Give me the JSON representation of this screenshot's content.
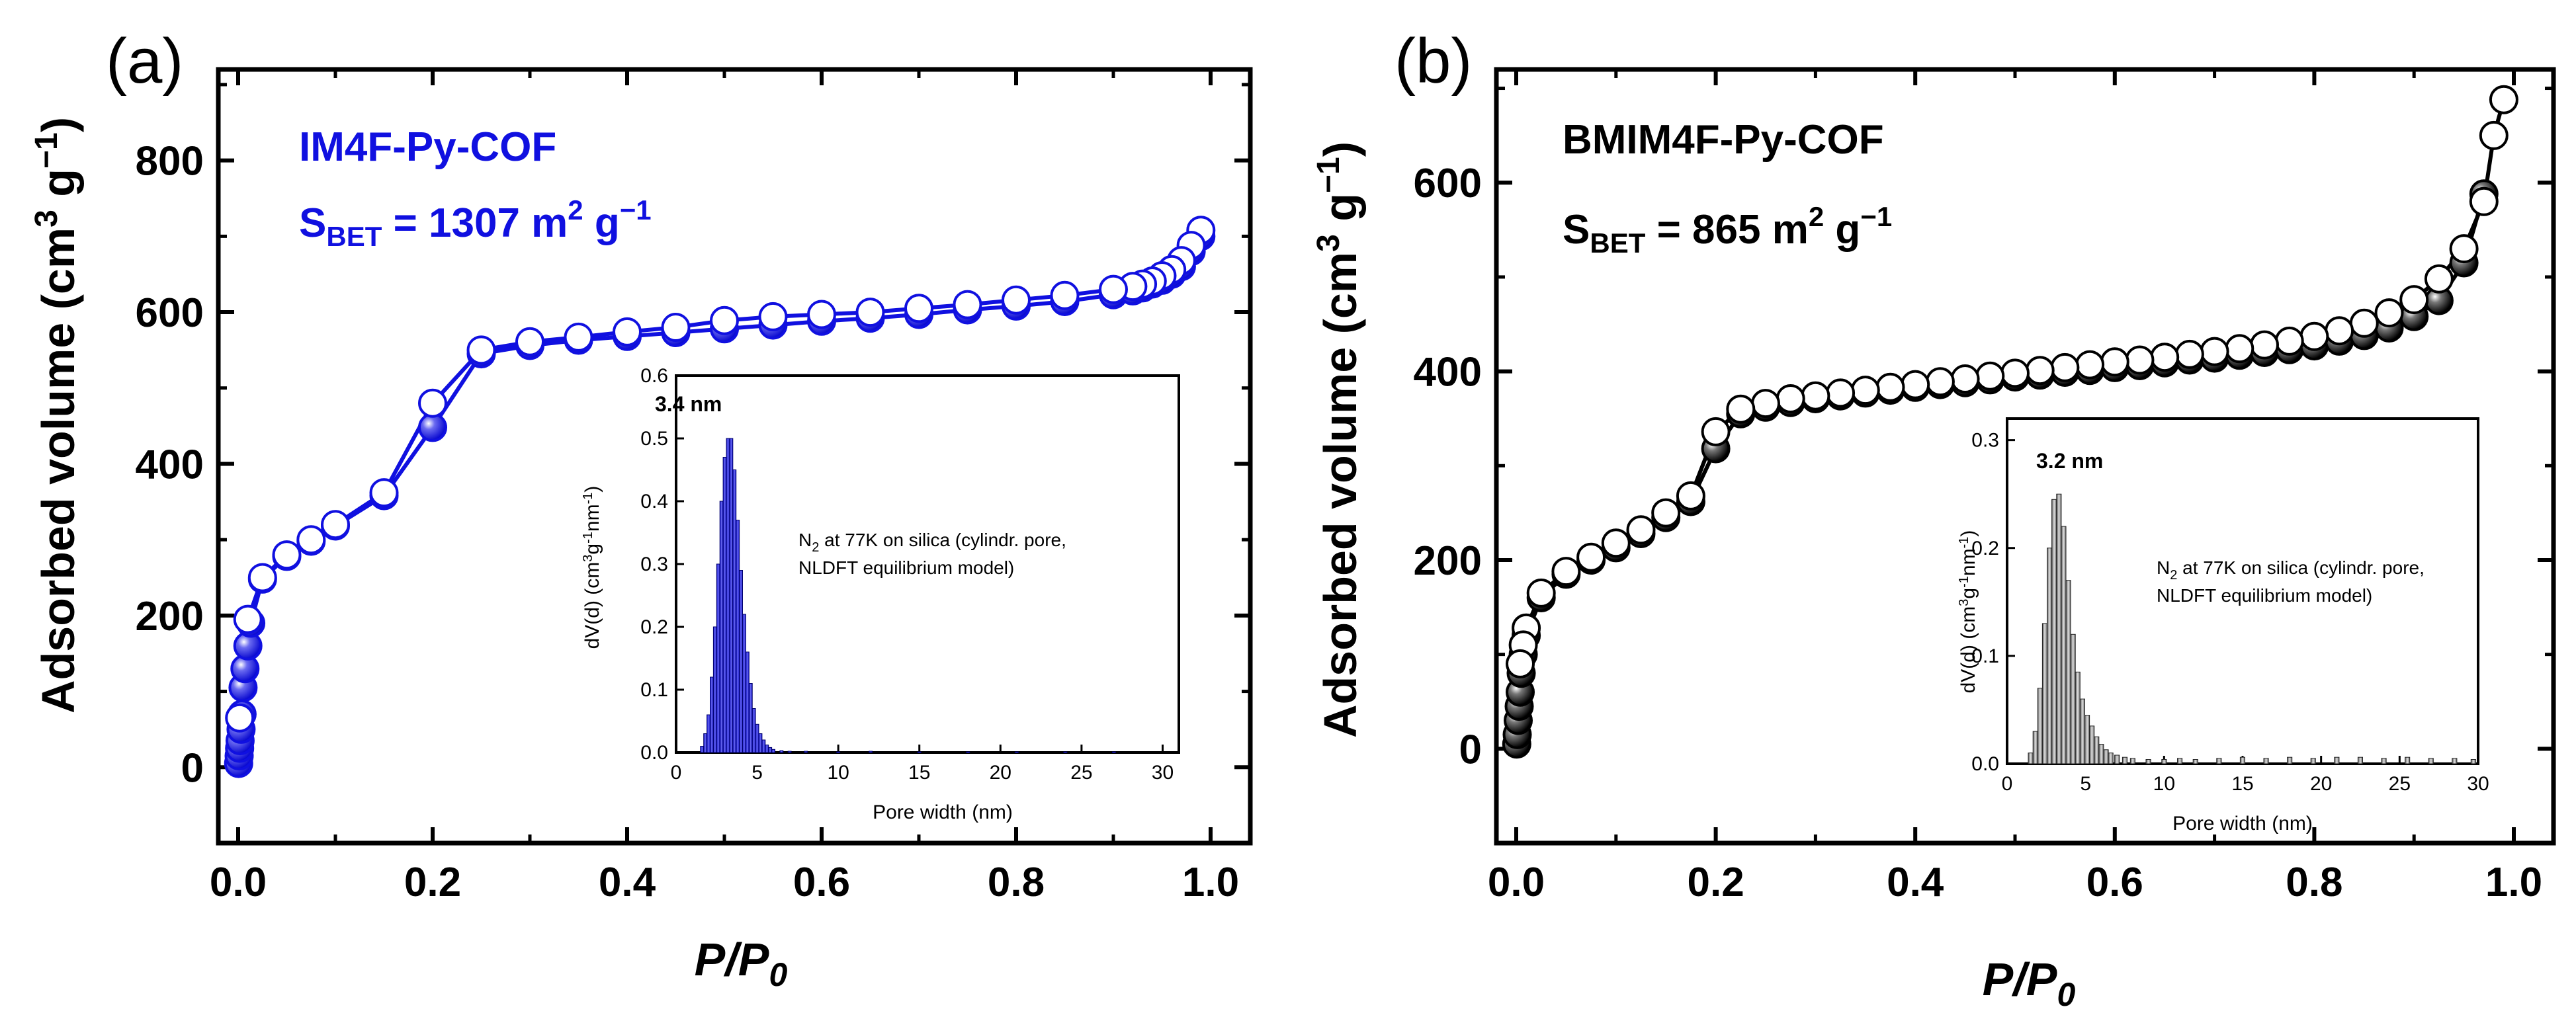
{
  "colors": {
    "blue": "#1010e0",
    "black": "#000000",
    "gray": "#9a9a9a",
    "white": "#ffffff"
  },
  "chart_data": [
    {
      "panel": "(a)",
      "type": "line",
      "annotation_title": "IM4F-Py-COF",
      "annotation_sbet_main": "S",
      "annotation_sbet_sub": "BET",
      "annotation_sbet_value": " = 1307 m",
      "annotation_sbet_exp": "2",
      "annotation_sbet_unit": " g",
      "annotation_sbet_unitexp": "−1",
      "xlabel_main": "P/P",
      "xlabel_sub": "0",
      "ylabel": "Adsorbed volume (cm",
      "ylabel_exp": "3",
      "ylabel_mid": " g",
      "ylabel_exp2": "−1",
      "ylabel_end": ")",
      "xlim": [
        0,
        1.0
      ],
      "ylim": [
        -100,
        920
      ],
      "xticks": [
        0.0,
        0.2,
        0.4,
        0.6,
        0.8,
        1.0
      ],
      "xticklabels": [
        "0.0",
        "0.2",
        "0.4",
        "0.6",
        "0.8",
        "1.0"
      ],
      "yticks": [
        0,
        200,
        400,
        600,
        800
      ],
      "yticklabels": [
        "0",
        "200",
        "400",
        "600",
        "800"
      ],
      "series": [
        {
          "name": "Adsorption",
          "marker": "filled",
          "x": [
            0.0005,
            0.001,
            0.0015,
            0.002,
            0.003,
            0.004,
            0.005,
            0.007,
            0.01,
            0.013,
            0.025,
            0.05,
            0.075,
            0.1,
            0.15,
            0.2,
            0.25,
            0.3,
            0.35,
            0.4,
            0.45,
            0.5,
            0.55,
            0.6,
            0.65,
            0.7,
            0.75,
            0.8,
            0.85,
            0.9,
            0.92,
            0.93,
            0.94,
            0.95,
            0.96,
            0.97,
            0.98,
            0.99
          ],
          "y": [
            5,
            15,
            25,
            35,
            50,
            70,
            105,
            130,
            160,
            190,
            248,
            278,
            298,
            318,
            358,
            448,
            545,
            556,
            563,
            568,
            573,
            578,
            583,
            588,
            592,
            597,
            603,
            608,
            614,
            623,
            628,
            632,
            637,
            642,
            650,
            660,
            680,
            700
          ]
        },
        {
          "name": "Desorption",
          "marker": "open",
          "x": [
            0.99,
            0.98,
            0.97,
            0.96,
            0.95,
            0.94,
            0.93,
            0.92,
            0.9,
            0.85,
            0.8,
            0.75,
            0.7,
            0.65,
            0.6,
            0.55,
            0.5,
            0.45,
            0.4,
            0.35,
            0.3,
            0.25,
            0.2,
            0.15,
            0.1,
            0.075,
            0.05,
            0.025,
            0.01,
            0.0015
          ],
          "y": [
            708,
            688,
            668,
            656,
            648,
            641,
            637,
            634,
            630,
            622,
            616,
            610,
            605,
            600,
            597,
            594,
            589,
            580,
            574,
            567,
            561,
            550,
            480,
            362,
            320,
            300,
            280,
            250,
            195,
            65
          ]
        }
      ],
      "inset": {
        "type": "bar",
        "peak_label": "3.4 nm",
        "note_line1_pre": "N",
        "note_line1_sub": "2",
        "note_line1_post": " at 77K on silica (cylindr. pore,",
        "note_line2": "NLDFT equilibrium model)",
        "xlabel": "Pore width (nm)",
        "ylabel": "dV(d) (cm",
        "ylabel_exp": "3",
        "ylabel_mid": "g",
        "ylabel_exp2": "-1",
        "ylabel_mid2": "nm",
        "ylabel_exp3": "-1",
        "ylabel_end": ")",
        "xlim": [
          0,
          31
        ],
        "ylim": [
          0,
          0.6
        ],
        "xticks": [
          0,
          5,
          10,
          15,
          20,
          25,
          30
        ],
        "xticklabels": [
          "0",
          "5",
          "10",
          "15",
          "20",
          "25",
          "30"
        ],
        "yticks": [
          0.0,
          0.1,
          0.2,
          0.3,
          0.4,
          0.5,
          0.6
        ],
        "yticklabels": [
          "0.0",
          "0.1",
          "0.2",
          "0.3",
          "0.4",
          "0.5",
          "0.6"
        ],
        "bin_width": 0.2,
        "x": [
          1.6,
          1.8,
          2.0,
          2.2,
          2.4,
          2.6,
          2.8,
          3.0,
          3.2,
          3.4,
          3.6,
          3.8,
          4.0,
          4.2,
          4.4,
          4.6,
          4.8,
          5.0,
          5.2,
          5.4,
          5.6,
          5.8,
          6.0,
          6.5,
          7.0,
          8.0,
          10.0,
          12.0,
          15.0,
          18.0,
          21.0,
          24.0,
          27.0
        ],
        "y": [
          0.01,
          0.03,
          0.06,
          0.12,
          0.2,
          0.3,
          0.4,
          0.47,
          0.5,
          0.5,
          0.45,
          0.37,
          0.29,
          0.22,
          0.16,
          0.11,
          0.07,
          0.045,
          0.03,
          0.02,
          0.012,
          0.008,
          0.005,
          0.003,
          0.002,
          0.002,
          0.001,
          0.002,
          0.001,
          0.001,
          0.001,
          0.001,
          0.001
        ],
        "bar_color": "#1010e0"
      }
    },
    {
      "panel": "(b)",
      "type": "line",
      "annotation_title": "BMIM4F-Py-COF",
      "annotation_sbet_main": "S",
      "annotation_sbet_sub": "BET",
      "annotation_sbet_value": " = 865 m",
      "annotation_sbet_exp": "2",
      "annotation_sbet_unit": " g",
      "annotation_sbet_unitexp": "−1",
      "xlabel_main": "P/P",
      "xlabel_sub": "0",
      "ylabel": "Adsorbed volume (cm",
      "ylabel_exp": "3",
      "ylabel_mid": " g",
      "ylabel_exp2": "−1",
      "ylabel_end": ")",
      "xlim": [
        0,
        1.0
      ],
      "ylim": [
        -100,
        720
      ],
      "xticks": [
        0.0,
        0.2,
        0.4,
        0.6,
        0.8,
        1.0
      ],
      "xticklabels": [
        "0.0",
        "0.2",
        "0.4",
        "0.6",
        "0.8",
        "1.0"
      ],
      "yticks": [
        0,
        200,
        400,
        600
      ],
      "yticklabels": [
        "0",
        "200",
        "400",
        "600"
      ],
      "series": [
        {
          "name": "Adsorption",
          "marker": "filled",
          "x": [
            0.0005,
            0.001,
            0.002,
            0.003,
            0.004,
            0.005,
            0.007,
            0.01,
            0.025,
            0.05,
            0.075,
            0.1,
            0.125,
            0.15,
            0.175,
            0.2,
            0.225,
            0.25,
            0.275,
            0.3,
            0.325,
            0.35,
            0.375,
            0.4,
            0.425,
            0.45,
            0.475,
            0.5,
            0.525,
            0.55,
            0.575,
            0.6,
            0.625,
            0.65,
            0.675,
            0.7,
            0.725,
            0.75,
            0.775,
            0.8,
            0.825,
            0.85,
            0.875,
            0.9,
            0.925,
            0.95,
            0.97
          ],
          "y": [
            5,
            15,
            30,
            45,
            60,
            80,
            100,
            120,
            160,
            185,
            200,
            213,
            228,
            245,
            262,
            318,
            355,
            362,
            367,
            371,
            374,
            377,
            380,
            383,
            386,
            388,
            391,
            394,
            396,
            399,
            401,
            404,
            406,
            409,
            412,
            414,
            417,
            420,
            423,
            427,
            432,
            438,
            446,
            458,
            475,
            515,
            588
          ]
        },
        {
          "name": "Desorption",
          "marker": "open",
          "x": [
            0.99,
            0.98,
            0.97,
            0.95,
            0.925,
            0.9,
            0.875,
            0.85,
            0.825,
            0.8,
            0.775,
            0.75,
            0.725,
            0.7,
            0.675,
            0.65,
            0.625,
            0.6,
            0.575,
            0.55,
            0.525,
            0.5,
            0.475,
            0.45,
            0.425,
            0.4,
            0.375,
            0.35,
            0.325,
            0.3,
            0.275,
            0.25,
            0.225,
            0.2,
            0.175,
            0.15,
            0.125,
            0.1,
            0.075,
            0.05,
            0.025,
            0.01,
            0.007,
            0.004
          ],
          "y": [
            688,
            650,
            580,
            530,
            498,
            476,
            462,
            451,
            443,
            437,
            432,
            428,
            424,
            421,
            418,
            415,
            412,
            410,
            407,
            404,
            401,
            398,
            395,
            392,
            389,
            386,
            383,
            380,
            377,
            374,
            371,
            366,
            360,
            336,
            268,
            250,
            232,
            218,
            203,
            188,
            165,
            128,
            110,
            90
          ]
        }
      ],
      "inset": {
        "type": "bar",
        "peak_label": "3.2 nm",
        "note_line1_pre": "N",
        "note_line1_sub": "2",
        "note_line1_post": " at 77K on silica (cylindr. pore,",
        "note_line2": "NLDFT equilibrium model)",
        "xlabel": "Pore width (nm)",
        "ylabel": "dV(d) (cm",
        "ylabel_exp": "3",
        "ylabel_mid": "g",
        "ylabel_exp2": "-1",
        "ylabel_mid2": "nm",
        "ylabel_exp3": "-1",
        "ylabel_end": ")",
        "xlim": [
          0,
          30
        ],
        "ylim": [
          0,
          0.32
        ],
        "xticks": [
          0,
          5,
          10,
          15,
          20,
          25,
          30
        ],
        "xticklabels": [
          "0",
          "5",
          "10",
          "15",
          "20",
          "25",
          "30"
        ],
        "yticks": [
          0.0,
          0.1,
          0.2,
          0.3
        ],
        "yticklabels": [
          "0.0",
          "0.1",
          "0.2",
          "0.3"
        ],
        "bin_width": 0.3,
        "x": [
          1.5,
          1.8,
          2.1,
          2.4,
          2.7,
          3.0,
          3.3,
          3.6,
          3.9,
          4.2,
          4.5,
          4.8,
          5.1,
          5.4,
          5.7,
          6.0,
          6.3,
          6.6,
          7.0,
          7.5,
          8.0,
          9.0,
          10.0,
          11.0,
          12.0,
          13.5,
          15.0,
          16.5,
          18.0,
          19.5,
          21.0,
          22.5,
          24.0,
          25.5,
          27.0,
          28.5,
          29.7
        ],
        "y": [
          0.01,
          0.03,
          0.07,
          0.13,
          0.2,
          0.245,
          0.25,
          0.22,
          0.17,
          0.12,
          0.085,
          0.06,
          0.045,
          0.035,
          0.025,
          0.018,
          0.013,
          0.01,
          0.008,
          0.006,
          0.005,
          0.004,
          0.004,
          0.005,
          0.004,
          0.005,
          0.006,
          0.005,
          0.006,
          0.005,
          0.006,
          0.006,
          0.005,
          0.006,
          0.005,
          0.005,
          0.004
        ],
        "bar_color": "#9a9a9a"
      }
    }
  ]
}
